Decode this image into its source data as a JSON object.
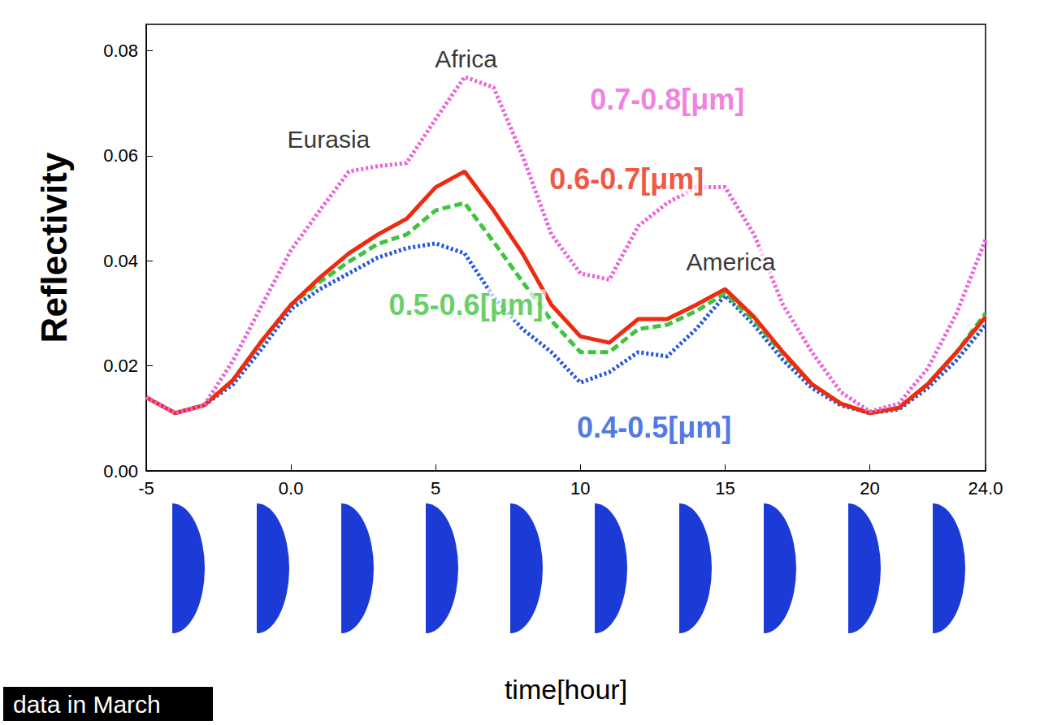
{
  "chart_data": {
    "type": "line",
    "x_label": "time[hour]",
    "y_label": "Reflectivity",
    "caption": "data in March",
    "x": [
      -5,
      -4,
      -3,
      -2,
      -1,
      0,
      1,
      2,
      3,
      4,
      5,
      6,
      7,
      8,
      9,
      10,
      11,
      12,
      13,
      14,
      15,
      16,
      17,
      18,
      19,
      20,
      21,
      22,
      23,
      24
    ],
    "xlim": [
      -5,
      24
    ],
    "xticks": [
      -5,
      {
        "value": 0,
        "label": "0.0"
      },
      5,
      10,
      15,
      20,
      {
        "value": 24,
        "label": "24.0"
      }
    ],
    "ylim": [
      0,
      0.085
    ],
    "yticks": [
      {
        "value": 0,
        "label": "0.00"
      },
      0.02,
      0.04,
      0.06,
      0.08
    ],
    "grid": false,
    "series": [
      {
        "name": "0.7-0.8[μm]",
        "color": "#ee5fd8",
        "line_style": "dotted",
        "values": [
          0.014,
          0.011,
          0.0125,
          0.021,
          0.0316,
          0.042,
          0.0496,
          0.057,
          0.058,
          0.0586,
          0.067,
          0.075,
          0.073,
          0.06,
          0.045,
          0.0376,
          0.0364,
          0.0466,
          0.051,
          0.054,
          0.054,
          0.045,
          0.0316,
          0.0226,
          0.015,
          0.0113,
          0.0128,
          0.0195,
          0.03,
          0.044
        ]
      },
      {
        "name": "0.6-0.7[μm]",
        "color": "#ee2a10",
        "line_style": "solid",
        "values": [
          0.014,
          0.011,
          0.0125,
          0.0173,
          0.0248,
          0.0316,
          0.0368,
          0.0414,
          0.045,
          0.048,
          0.054,
          0.057,
          0.0496,
          0.0414,
          0.0316,
          0.0256,
          0.0244,
          0.0289,
          0.0289,
          0.0316,
          0.0346,
          0.0293,
          0.0226,
          0.0165,
          0.0128,
          0.011,
          0.012,
          0.0165,
          0.0226,
          0.0293
        ]
      },
      {
        "name": "0.5-0.6[μm]",
        "color": "#3fc43f",
        "line_style": "dashed",
        "values": [
          0.014,
          0.011,
          0.0125,
          0.0173,
          0.0248,
          0.0316,
          0.036,
          0.0398,
          0.0432,
          0.045,
          0.0496,
          0.051,
          0.0436,
          0.036,
          0.0286,
          0.0226,
          0.0226,
          0.027,
          0.0278,
          0.0304,
          0.0338,
          0.0286,
          0.0223,
          0.0165,
          0.0128,
          0.011,
          0.012,
          0.0165,
          0.0226,
          0.03
        ]
      },
      {
        "name": "0.4-0.5[μm]",
        "color": "#2255e0",
        "line_style": "dotted",
        "values": [
          0.014,
          0.011,
          0.0125,
          0.0165,
          0.0233,
          0.0308,
          0.0346,
          0.0376,
          0.0406,
          0.0424,
          0.0433,
          0.0414,
          0.0331,
          0.027,
          0.0226,
          0.0168,
          0.0188,
          0.0226,
          0.0218,
          0.027,
          0.0334,
          0.0278,
          0.0211,
          0.0158,
          0.0125,
          0.011,
          0.0117,
          0.0158,
          0.0211,
          0.0278
        ]
      }
    ],
    "annotations": [
      {
        "text": "Africa",
        "x": 6.05,
        "y": 0.0785
      },
      {
        "text": "Eurasia",
        "x": 1.3,
        "y": 0.0632
      },
      {
        "text": "America",
        "x": 15.2,
        "y": 0.0398
      }
    ]
  }
}
